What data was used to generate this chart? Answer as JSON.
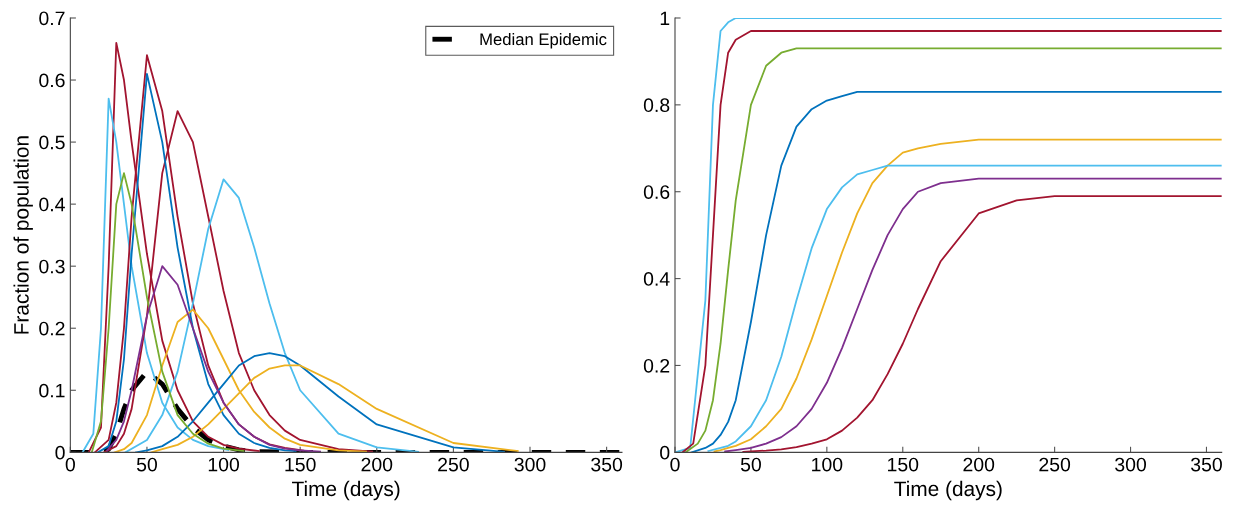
{
  "chart_data": [
    {
      "type": "line",
      "ylabel": "Fraction of population",
      "xlabel": "Time (days)",
      "xlim": [
        0,
        360
      ],
      "xticks": [
        0,
        50,
        100,
        150,
        200,
        250,
        300,
        350
      ],
      "ylim": [
        0,
        0.7
      ],
      "yticks": [
        0,
        0.1,
        0.2,
        0.3,
        0.4,
        0.5,
        0.6,
        0.7
      ],
      "legend": "top right",
      "series": [
        {
          "color": "#a2142f",
          "x": [
            12,
            20,
            25,
            30,
            35,
            40,
            50,
            60,
            70,
            80,
            90,
            100,
            110,
            123
          ],
          "values": [
            0,
            0.04,
            0.3,
            0.66,
            0.6,
            0.5,
            0.32,
            0.18,
            0.1,
            0.05,
            0.025,
            0.012,
            0.006,
            0.002
          ]
        },
        {
          "color": "#4dbeee",
          "x": [
            8,
            15,
            20,
            25,
            30,
            35,
            40,
            50,
            60,
            70,
            80,
            90,
            103
          ],
          "values": [
            0,
            0.03,
            0.2,
            0.57,
            0.5,
            0.4,
            0.3,
            0.16,
            0.08,
            0.04,
            0.02,
            0.01,
            0.004
          ]
        },
        {
          "color": "#a2142f",
          "x": [
            16,
            25,
            30,
            35,
            40,
            50,
            60,
            70,
            80,
            90,
            100,
            110,
            120,
            130,
            140,
            152
          ],
          "values": [
            0,
            0.02,
            0.08,
            0.2,
            0.38,
            0.64,
            0.55,
            0.38,
            0.24,
            0.14,
            0.08,
            0.045,
            0.025,
            0.013,
            0.007,
            0.003
          ]
        },
        {
          "color": "#a2142f",
          "x": [
            22,
            30,
            35,
            40,
            50,
            60,
            70,
            80,
            90,
            100,
            110,
            120,
            130,
            140,
            150,
            175,
            197
          ],
          "values": [
            0,
            0.01,
            0.03,
            0.07,
            0.22,
            0.45,
            0.55,
            0.5,
            0.38,
            0.26,
            0.16,
            0.1,
            0.06,
            0.035,
            0.02,
            0.005,
            0.001
          ]
        },
        {
          "color": "#4dbeee",
          "x": [
            36,
            50,
            60,
            70,
            80,
            90,
            100,
            110,
            120,
            130,
            140,
            150,
            175,
            200,
            227
          ],
          "values": [
            0,
            0.02,
            0.06,
            0.13,
            0.24,
            0.36,
            0.44,
            0.41,
            0.33,
            0.24,
            0.16,
            0.1,
            0.03,
            0.008,
            0.001
          ]
        },
        {
          "color": "#0072bd",
          "x": [
            18,
            25,
            30,
            35,
            40,
            50,
            60,
            70,
            80,
            90,
            100,
            110,
            120,
            130,
            140,
            147
          ],
          "values": [
            0,
            0.01,
            0.05,
            0.15,
            0.32,
            0.61,
            0.5,
            0.33,
            0.2,
            0.11,
            0.06,
            0.03,
            0.015,
            0.007,
            0.003,
            0.002
          ]
        },
        {
          "color": "#edb120",
          "x": [
            29,
            35,
            40,
            50,
            60,
            70,
            80,
            90,
            100,
            110,
            120,
            130,
            140,
            150,
            175,
            193
          ],
          "values": [
            0,
            0.005,
            0.015,
            0.06,
            0.14,
            0.21,
            0.23,
            0.2,
            0.15,
            0.1,
            0.065,
            0.04,
            0.022,
            0.012,
            0.003,
            0.001
          ]
        },
        {
          "color": "#0072bd",
          "x": [
            43,
            50,
            60,
            70,
            80,
            90,
            100,
            110,
            120,
            130,
            140,
            150,
            175,
            200,
            250,
            283
          ],
          "values": [
            0,
            0.003,
            0.01,
            0.025,
            0.05,
            0.08,
            0.11,
            0.14,
            0.155,
            0.16,
            0.155,
            0.14,
            0.09,
            0.045,
            0.008,
            0.001
          ]
        },
        {
          "color": "#edb120",
          "x": [
            53,
            60,
            70,
            80,
            90,
            100,
            110,
            120,
            130,
            140,
            150,
            175,
            200,
            250,
            292
          ],
          "values": [
            0,
            0.005,
            0.012,
            0.025,
            0.045,
            0.07,
            0.095,
            0.12,
            0.135,
            0.14,
            0.14,
            0.11,
            0.07,
            0.015,
            0.002
          ]
        },
        {
          "color": "#77ac30",
          "x": [
            14,
            20,
            25,
            30,
            35,
            40,
            50,
            60,
            70,
            80,
            90,
            100,
            113
          ],
          "values": [
            0,
            0.05,
            0.2,
            0.4,
            0.45,
            0.4,
            0.25,
            0.13,
            0.06,
            0.03,
            0.014,
            0.006,
            0.002
          ]
        },
        {
          "color": "#7e2f8e",
          "x": [
            24,
            30,
            35,
            40,
            50,
            60,
            70,
            80,
            90,
            100,
            110,
            120,
            130,
            140,
            150,
            163
          ],
          "values": [
            0.003,
            0.02,
            0.05,
            0.1,
            0.22,
            0.3,
            0.27,
            0.2,
            0.13,
            0.08,
            0.045,
            0.025,
            0.012,
            0.006,
            0.003,
            0.001
          ]
        },
        {
          "name": "Median Epidemic",
          "color": "#000000",
          "line_style": "dashed",
          "x": [
            0,
            10,
            20,
            25,
            30,
            35,
            40,
            50,
            60,
            70,
            80,
            90,
            100,
            110,
            120,
            150,
            200,
            250,
            300,
            360
          ],
          "values": [
            0,
            0,
            0,
            0.005,
            0.03,
            0.07,
            0.1,
            0.13,
            0.11,
            0.07,
            0.04,
            0.02,
            0.01,
            0.004,
            0.001,
            0,
            0,
            0,
            0,
            0
          ]
        }
      ]
    },
    {
      "type": "line",
      "xlabel": "Time (days)",
      "xlim": [
        0,
        360
      ],
      "xticks": [
        0,
        50,
        100,
        150,
        200,
        250,
        300,
        350
      ],
      "ylim": [
        0,
        1
      ],
      "yticks": [
        0,
        0.2,
        0.4,
        0.6,
        0.8,
        1
      ],
      "series": [
        {
          "color": "#4dbeee",
          "x": [
            0,
            10,
            20,
            25,
            30,
            35,
            40,
            50,
            360
          ],
          "values": [
            0,
            0.01,
            0.35,
            0.8,
            0.97,
            0.99,
            1,
            1,
            1
          ]
        },
        {
          "color": "#a2142f",
          "x": [
            45,
            50,
            60,
            70,
            80,
            90,
            100,
            110,
            120,
            130,
            140,
            150,
            160,
            175,
            200,
            225,
            250,
            360
          ],
          "values": [
            0.001,
            0.002,
            0.004,
            0.007,
            0.012,
            0.02,
            0.03,
            0.05,
            0.08,
            0.12,
            0.18,
            0.25,
            0.33,
            0.44,
            0.55,
            0.58,
            0.59,
            0.59
          ]
        },
        {
          "color": "#0072bd",
          "x": [
            11,
            20,
            25,
            30,
            35,
            40,
            50,
            60,
            70,
            80,
            90,
            100,
            110,
            120,
            360
          ],
          "values": [
            0,
            0.01,
            0.02,
            0.04,
            0.07,
            0.12,
            0.3,
            0.5,
            0.66,
            0.75,
            0.79,
            0.81,
            0.82,
            0.83,
            0.83
          ]
        },
        {
          "color": "#edb120",
          "x": [
            26,
            30,
            35,
            40,
            50,
            60,
            70,
            80,
            90,
            100,
            110,
            120,
            130,
            140,
            150,
            160,
            175,
            200,
            360
          ],
          "values": [
            0.002,
            0.005,
            0.01,
            0.015,
            0.03,
            0.06,
            0.1,
            0.17,
            0.26,
            0.36,
            0.46,
            0.55,
            0.62,
            0.66,
            0.69,
            0.7,
            0.71,
            0.72,
            0.72
          ]
        },
        {
          "color": "#77ac30",
          "x": [
            7,
            15,
            20,
            25,
            30,
            35,
            40,
            50,
            60,
            70,
            80,
            360
          ],
          "values": [
            0,
            0.02,
            0.05,
            0.12,
            0.25,
            0.42,
            0.58,
            0.8,
            0.89,
            0.92,
            0.93,
            0.93
          ]
        },
        {
          "color": "#7e2f8e",
          "x": [
            33,
            40,
            50,
            60,
            70,
            80,
            90,
            100,
            110,
            120,
            130,
            140,
            150,
            160,
            175,
            200,
            360
          ],
          "values": [
            0.002,
            0.005,
            0.01,
            0.02,
            0.035,
            0.06,
            0.1,
            0.16,
            0.24,
            0.33,
            0.42,
            0.5,
            0.56,
            0.6,
            0.62,
            0.63,
            0.63
          ]
        },
        {
          "color": "#a2142f",
          "x": [
            5,
            12,
            20,
            25,
            30,
            35,
            40,
            50,
            360
          ],
          "values": [
            0,
            0.02,
            0.2,
            0.5,
            0.8,
            0.92,
            0.95,
            0.97,
            0.97
          ]
        },
        {
          "color": "#4dbeee",
          "x": [
            22,
            30,
            35,
            40,
            50,
            60,
            70,
            80,
            90,
            100,
            110,
            120,
            130,
            140,
            360
          ],
          "values": [
            0.003,
            0.01,
            0.015,
            0.025,
            0.06,
            0.12,
            0.22,
            0.35,
            0.47,
            0.56,
            0.61,
            0.64,
            0.65,
            0.66,
            0.66
          ]
        }
      ]
    }
  ]
}
